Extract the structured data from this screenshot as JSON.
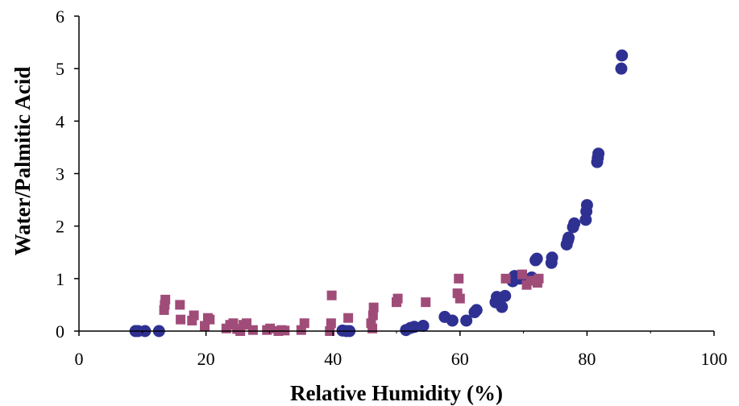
{
  "chart_data": {
    "type": "scatter",
    "title": "",
    "xlabel": "Relative Humidity (%)",
    "ylabel": "Water/Palmitic Acid",
    "xlim": [
      0,
      100
    ],
    "ylim": [
      0,
      6
    ],
    "x_ticks": [
      0,
      20,
      40,
      60,
      80,
      100
    ],
    "y_ticks": [
      0,
      1,
      2,
      3,
      4,
      5,
      6
    ],
    "grid": false,
    "legend": "none",
    "series": [
      {
        "marker": "circle",
        "color": "#2e3192",
        "points": [
          [
            8.9,
            0.0
          ],
          [
            9.3,
            0.0
          ],
          [
            10.4,
            0.0
          ],
          [
            12.6,
            0.0
          ],
          [
            41.5,
            0.01
          ],
          [
            42.1,
            0.0
          ],
          [
            42.6,
            0.0
          ],
          [
            51.5,
            0.02
          ],
          [
            52.2,
            0.06
          ],
          [
            52.8,
            0.08
          ],
          [
            54.2,
            0.1
          ],
          [
            57.6,
            0.27
          ],
          [
            58.8,
            0.2
          ],
          [
            61.0,
            0.2
          ],
          [
            62.3,
            0.36
          ],
          [
            62.6,
            0.4
          ],
          [
            65.6,
            0.55
          ],
          [
            65.8,
            0.65
          ],
          [
            66.6,
            0.46
          ],
          [
            67.1,
            0.67
          ],
          [
            68.3,
            0.95
          ],
          [
            68.6,
            1.05
          ],
          [
            69.4,
            1.0
          ],
          [
            70.0,
            1.0
          ],
          [
            71.3,
            1.02
          ],
          [
            71.9,
            1.35
          ],
          [
            72.1,
            1.38
          ],
          [
            74.4,
            1.3
          ],
          [
            74.5,
            1.4
          ],
          [
            76.8,
            1.65
          ],
          [
            77.0,
            1.73
          ],
          [
            77.1,
            1.78
          ],
          [
            77.8,
            1.98
          ],
          [
            78.0,
            2.05
          ],
          [
            79.8,
            2.12
          ],
          [
            79.9,
            2.28
          ],
          [
            80.0,
            2.4
          ],
          [
            81.6,
            3.22
          ],
          [
            81.7,
            3.3
          ],
          [
            81.8,
            3.38
          ],
          [
            85.4,
            5.0
          ],
          [
            85.5,
            5.25
          ]
        ]
      },
      {
        "marker": "square",
        "color": "#a04c79",
        "points": [
          [
            13.4,
            0.4
          ],
          [
            13.5,
            0.5
          ],
          [
            13.6,
            0.6
          ],
          [
            15.9,
            0.5
          ],
          [
            16.0,
            0.22
          ],
          [
            17.8,
            0.2
          ],
          [
            18.1,
            0.3
          ],
          [
            19.8,
            0.1
          ],
          [
            20.3,
            0.25
          ],
          [
            20.6,
            0.22
          ],
          [
            23.2,
            0.05
          ],
          [
            23.8,
            0.12
          ],
          [
            24.3,
            0.15
          ],
          [
            24.9,
            0.04
          ],
          [
            25.4,
            0.0
          ],
          [
            25.9,
            0.12
          ],
          [
            26.4,
            0.15
          ],
          [
            27.4,
            0.02
          ],
          [
            29.6,
            0.02
          ],
          [
            30.1,
            0.05
          ],
          [
            31.4,
            0.0
          ],
          [
            31.9,
            0.02
          ],
          [
            32.4,
            0.01
          ],
          [
            35.0,
            0.02
          ],
          [
            35.5,
            0.15
          ],
          [
            39.5,
            0.0
          ],
          [
            39.7,
            0.15
          ],
          [
            39.8,
            0.68
          ],
          [
            42.4,
            0.25
          ],
          [
            46.0,
            0.15
          ],
          [
            46.2,
            0.05
          ],
          [
            46.3,
            0.3
          ],
          [
            46.4,
            0.45
          ],
          [
            50.0,
            0.55
          ],
          [
            50.2,
            0.62
          ],
          [
            54.6,
            0.55
          ],
          [
            59.6,
            0.72
          ],
          [
            59.8,
            1.0
          ],
          [
            60.0,
            0.62
          ],
          [
            67.2,
            1.0
          ],
          [
            69.8,
            1.08
          ],
          [
            70.5,
            0.88
          ],
          [
            71.2,
            0.96
          ],
          [
            72.2,
            0.92
          ],
          [
            72.4,
            1.0
          ]
        ]
      }
    ]
  }
}
